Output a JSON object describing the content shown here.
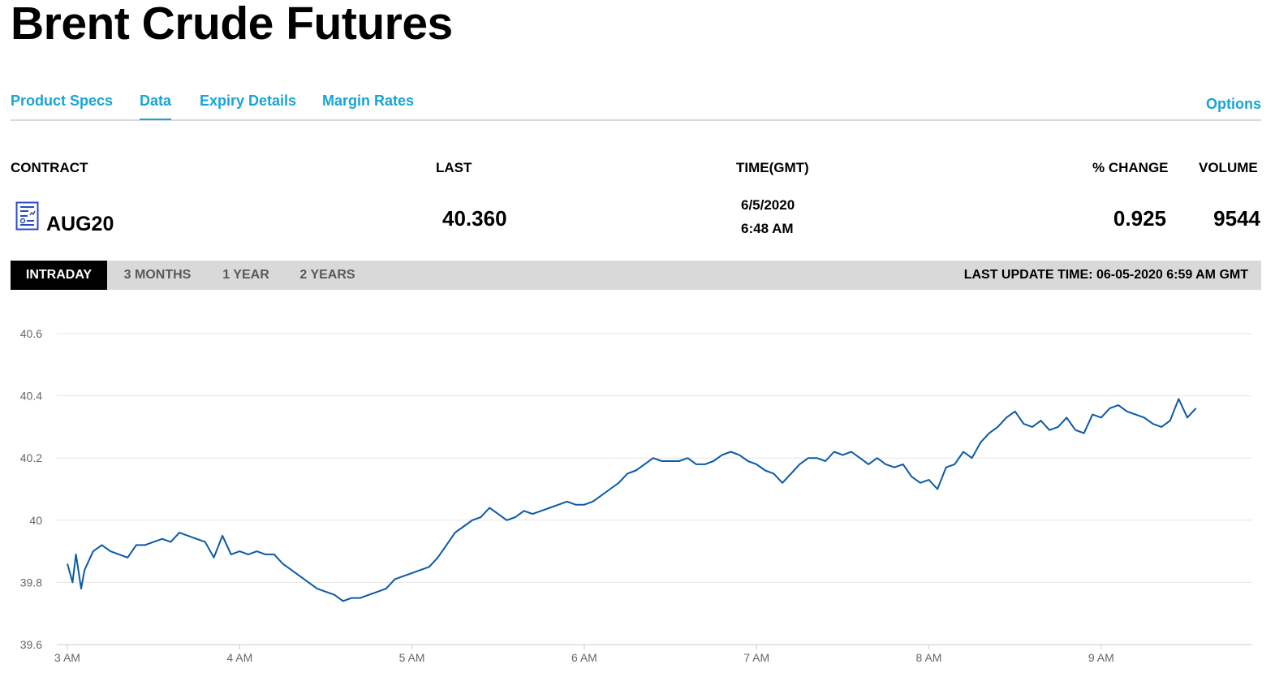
{
  "page": {
    "title": "Brent Crude Futures"
  },
  "tabs": [
    {
      "label": "Product Specs"
    },
    {
      "label": "Data"
    },
    {
      "label": "Expiry Details"
    },
    {
      "label": "Margin Rates"
    }
  ],
  "options_label": "Options",
  "table": {
    "headers": {
      "contract": "CONTRACT",
      "last": "LAST",
      "time": "TIME(GMT)",
      "change": "% CHANGE",
      "volume": "VOLUME"
    },
    "row": {
      "contract": "AUG20",
      "contract_icon": "report-document-icon",
      "last": "40.360",
      "date": "6/5/2020",
      "time": "6:48 AM",
      "change": "0.925",
      "volume": "9544"
    }
  },
  "ranges": [
    {
      "label": "INTRADAY",
      "active": true
    },
    {
      "label": "3 MONTHS",
      "active": false
    },
    {
      "label": "1 YEAR",
      "active": false
    },
    {
      "label": "2 YEARS",
      "active": false
    }
  ],
  "last_update": "LAST UPDATE TIME: 06-05-2020 6:59 AM GMT",
  "colors": {
    "accent": "#17a4d6",
    "line": "#0b5aa6",
    "active_tab_bg": "#000000",
    "range_bar_bg": "#d9d9d9"
  },
  "chart_data": {
    "type": "line",
    "title": "",
    "xlabel": "",
    "ylabel": "",
    "x_ticks": [
      "3 AM",
      "4 AM",
      "5 AM",
      "6 AM",
      "7 AM",
      "8 AM",
      "9 AM"
    ],
    "y_ticks": [
      "39.6",
      "39.8",
      "40",
      "40.2",
      "40.4",
      "40.6"
    ],
    "ylim": [
      39.6,
      40.6
    ],
    "grid": true,
    "series": [
      {
        "points": [
          [
            3.0,
            39.86
          ],
          [
            3.03,
            39.8
          ],
          [
            3.05,
            39.89
          ],
          [
            3.08,
            39.78
          ],
          [
            3.1,
            39.84
          ],
          [
            3.15,
            39.9
          ],
          [
            3.2,
            39.92
          ],
          [
            3.25,
            39.9
          ],
          [
            3.3,
            39.89
          ],
          [
            3.35,
            39.88
          ],
          [
            3.4,
            39.92
          ],
          [
            3.45,
            39.92
          ],
          [
            3.5,
            39.93
          ],
          [
            3.55,
            39.94
          ],
          [
            3.6,
            39.93
          ],
          [
            3.65,
            39.96
          ],
          [
            3.7,
            39.95
          ],
          [
            3.75,
            39.94
          ],
          [
            3.8,
            39.93
          ],
          [
            3.85,
            39.88
          ],
          [
            3.9,
            39.95
          ],
          [
            3.95,
            39.89
          ],
          [
            4.0,
            39.9
          ],
          [
            4.05,
            39.89
          ],
          [
            4.1,
            39.9
          ],
          [
            4.15,
            39.89
          ],
          [
            4.2,
            39.89
          ],
          [
            4.25,
            39.86
          ],
          [
            4.3,
            39.84
          ],
          [
            4.35,
            39.82
          ],
          [
            4.4,
            39.8
          ],
          [
            4.45,
            39.78
          ],
          [
            4.5,
            39.77
          ],
          [
            4.55,
            39.76
          ],
          [
            4.6,
            39.74
          ],
          [
            4.65,
            39.75
          ],
          [
            4.7,
            39.75
          ],
          [
            4.75,
            39.76
          ],
          [
            4.8,
            39.77
          ],
          [
            4.85,
            39.78
          ],
          [
            4.9,
            39.81
          ],
          [
            4.95,
            39.82
          ],
          [
            5.0,
            39.83
          ],
          [
            5.05,
            39.84
          ],
          [
            5.1,
            39.85
          ],
          [
            5.15,
            39.88
          ],
          [
            5.2,
            39.92
          ],
          [
            5.25,
            39.96
          ],
          [
            5.3,
            39.98
          ],
          [
            5.35,
            40.0
          ],
          [
            5.4,
            40.01
          ],
          [
            5.45,
            40.04
          ],
          [
            5.5,
            40.02
          ],
          [
            5.55,
            40.0
          ],
          [
            5.6,
            40.01
          ],
          [
            5.65,
            40.03
          ],
          [
            5.7,
            40.02
          ],
          [
            5.75,
            40.03
          ],
          [
            5.8,
            40.04
          ],
          [
            5.85,
            40.05
          ],
          [
            5.9,
            40.06
          ],
          [
            5.95,
            40.05
          ],
          [
            6.0,
            40.05
          ],
          [
            6.05,
            40.06
          ],
          [
            6.1,
            40.08
          ],
          [
            6.15,
            40.1
          ],
          [
            6.2,
            40.12
          ],
          [
            6.25,
            40.15
          ],
          [
            6.3,
            40.16
          ],
          [
            6.35,
            40.18
          ],
          [
            6.4,
            40.2
          ],
          [
            6.45,
            40.19
          ],
          [
            6.5,
            40.19
          ],
          [
            6.55,
            40.19
          ],
          [
            6.6,
            40.2
          ],
          [
            6.65,
            40.18
          ],
          [
            6.7,
            40.18
          ],
          [
            6.75,
            40.19
          ],
          [
            6.8,
            40.21
          ],
          [
            6.85,
            40.22
          ],
          [
            6.9,
            40.21
          ],
          [
            6.95,
            40.19
          ],
          [
            7.0,
            40.18
          ],
          [
            7.05,
            40.16
          ],
          [
            7.1,
            40.15
          ],
          [
            7.15,
            40.12
          ],
          [
            7.2,
            40.15
          ],
          [
            7.25,
            40.18
          ],
          [
            7.3,
            40.2
          ],
          [
            7.35,
            40.2
          ],
          [
            7.4,
            40.19
          ],
          [
            7.45,
            40.22
          ],
          [
            7.5,
            40.21
          ],
          [
            7.55,
            40.22
          ],
          [
            7.6,
            40.2
          ],
          [
            7.65,
            40.18
          ],
          [
            7.7,
            40.2
          ],
          [
            7.75,
            40.18
          ],
          [
            7.8,
            40.17
          ],
          [
            7.85,
            40.18
          ],
          [
            7.9,
            40.14
          ],
          [
            7.95,
            40.12
          ],
          [
            8.0,
            40.13
          ],
          [
            8.05,
            40.1
          ],
          [
            8.1,
            40.17
          ],
          [
            8.15,
            40.18
          ],
          [
            8.2,
            40.22
          ],
          [
            8.25,
            40.2
          ],
          [
            8.3,
            40.25
          ],
          [
            8.35,
            40.28
          ],
          [
            8.4,
            40.3
          ],
          [
            8.45,
            40.33
          ],
          [
            8.5,
            40.35
          ],
          [
            8.55,
            40.31
          ],
          [
            8.6,
            40.3
          ],
          [
            8.65,
            40.32
          ],
          [
            8.7,
            40.29
          ],
          [
            8.75,
            40.3
          ],
          [
            8.8,
            40.33
          ],
          [
            8.85,
            40.29
          ],
          [
            8.9,
            40.28
          ],
          [
            8.95,
            40.34
          ],
          [
            9.0,
            40.33
          ],
          [
            9.05,
            40.36
          ],
          [
            9.1,
            40.37
          ],
          [
            9.15,
            40.35
          ],
          [
            9.2,
            40.34
          ],
          [
            9.25,
            40.33
          ],
          [
            9.3,
            40.31
          ],
          [
            9.35,
            40.3
          ],
          [
            9.4,
            40.32
          ],
          [
            9.45,
            40.39
          ],
          [
            9.5,
            40.33
          ],
          [
            9.55,
            40.36
          ]
        ]
      }
    ]
  }
}
